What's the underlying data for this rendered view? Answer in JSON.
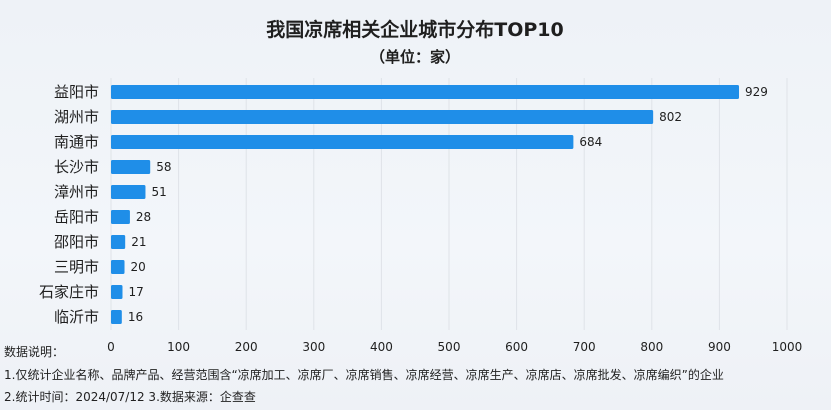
{
  "chart_data": {
    "type": "bar",
    "orientation": "horizontal",
    "title": "我国凉席相关企业城市分布TOP10",
    "subtitle": "（单位：家）",
    "categories": [
      "益阳市",
      "湖州市",
      "南通市",
      "长沙市",
      "漳州市",
      "岳阳市",
      "邵阳市",
      "三明市",
      "石家庄市",
      "临沂市"
    ],
    "values": [
      929,
      802,
      684,
      58,
      51,
      28,
      21,
      20,
      17,
      16
    ],
    "xlim": [
      0,
      1000
    ],
    "xticks": [
      "0",
      "100",
      "200",
      "300",
      "400",
      "500",
      "600",
      "700",
      "800",
      "900",
      "1000"
    ],
    "grid": true,
    "bar_color": "#1f8ee8"
  },
  "notes": [
    "数据说明：",
    "1.仅统计企业名称、品牌产品、经营范围含“凉席加工、凉席厂、凉席销售、凉席经营、凉席生产、凉席店、凉席批发、凉席编织”的企业",
    "2.统计时间：2024/07/12    3.数据来源：企查查"
  ]
}
